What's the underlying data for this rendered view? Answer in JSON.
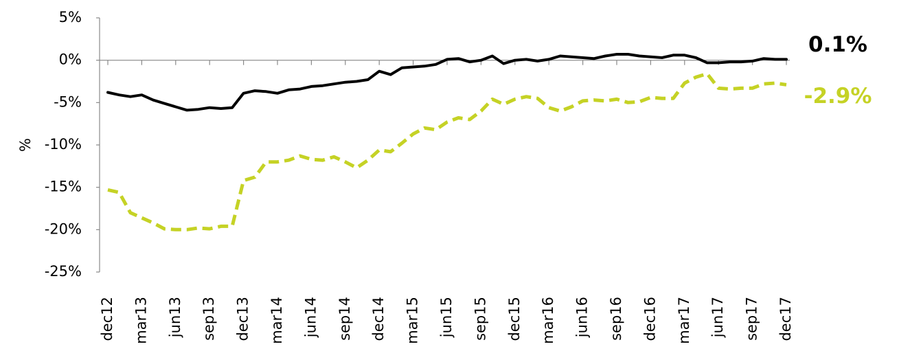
{
  "chart_data": {
    "type": "line",
    "y_label": "%",
    "categories": [
      "dec12",
      null,
      null,
      "mar13",
      null,
      null,
      "jun13",
      null,
      null,
      "sep13",
      null,
      null,
      "dec13",
      null,
      null,
      "mar14",
      null,
      null,
      "jun14",
      null,
      null,
      "sep14",
      null,
      null,
      "dec14",
      null,
      null,
      "mar15",
      null,
      null,
      "jun15",
      null,
      null,
      "sep15",
      null,
      null,
      "dec15",
      null,
      null,
      "mar16",
      null,
      null,
      "jun16",
      null,
      null,
      "sep16",
      null,
      null,
      "dec16",
      null,
      null,
      "mar17",
      null,
      null,
      "jun17",
      null,
      null,
      "sep17",
      null,
      null,
      "dec17"
    ],
    "series": [
      {
        "color": "#000000",
        "dashed": false,
        "values": [
          -3.8,
          -4.1,
          -4.3,
          -4.1,
          -4.7,
          -5.1,
          -5.5,
          -5.9,
          -5.8,
          -5.6,
          -5.7,
          -5.6,
          -3.9,
          -3.6,
          -3.7,
          -3.9,
          -3.5,
          -3.4,
          -3.1,
          -3.0,
          -2.8,
          -2.6,
          -2.5,
          -2.3,
          -1.3,
          -1.7,
          -0.9,
          -0.8,
          -0.7,
          -0.5,
          0.1,
          0.2,
          -0.2,
          0.0,
          0.5,
          -0.4,
          0.0,
          0.1,
          -0.1,
          0.1,
          0.5,
          0.4,
          0.3,
          0.2,
          0.5,
          0.7,
          0.7,
          0.5,
          0.4,
          0.3,
          0.6,
          0.6,
          0.3,
          -0.3,
          -0.3,
          -0.2,
          -0.2,
          -0.1,
          0.2,
          0.1,
          0.1
        ]
      },
      {
        "color": "#c5d225",
        "dashed": true,
        "values": [
          -15.3,
          -15.6,
          -18.0,
          -18.6,
          -19.2,
          -19.9,
          -20.0,
          -20.0,
          -19.8,
          -19.9,
          -19.6,
          -19.6,
          -14.2,
          -13.8,
          -12.0,
          -12.0,
          -11.8,
          -11.3,
          -11.7,
          -11.8,
          -11.4,
          -12.0,
          -12.7,
          -11.8,
          -10.6,
          -10.8,
          -9.8,
          -8.7,
          -8.0,
          -8.2,
          -7.3,
          -6.8,
          -7.0,
          -6.0,
          -4.6,
          -5.2,
          -4.6,
          -4.3,
          -4.5,
          -5.6,
          -6.0,
          -5.5,
          -4.8,
          -4.7,
          -4.8,
          -4.6,
          -5.0,
          -4.9,
          -4.4,
          -4.5,
          -4.5,
          -2.7,
          -2.0,
          -1.6,
          -3.3,
          -3.4,
          -3.3,
          -3.3,
          -2.8,
          -2.7,
          -2.9
        ]
      }
    ],
    "annotations": [
      {
        "text": "0.1%",
        "series": 0
      },
      {
        "text": "-2.9%",
        "series": 1
      }
    ],
    "ylim": [
      -25,
      5
    ],
    "yticks": [
      {
        "value": 5,
        "label": "5%"
      },
      {
        "value": 0,
        "label": "0%"
      },
      {
        "value": -5,
        "label": "-5%"
      },
      {
        "value": -10,
        "label": "-10%"
      },
      {
        "value": -15,
        "label": "-15%"
      },
      {
        "value": -20,
        "label": "-20%"
      },
      {
        "value": -25,
        "label": "-25%"
      }
    ]
  }
}
